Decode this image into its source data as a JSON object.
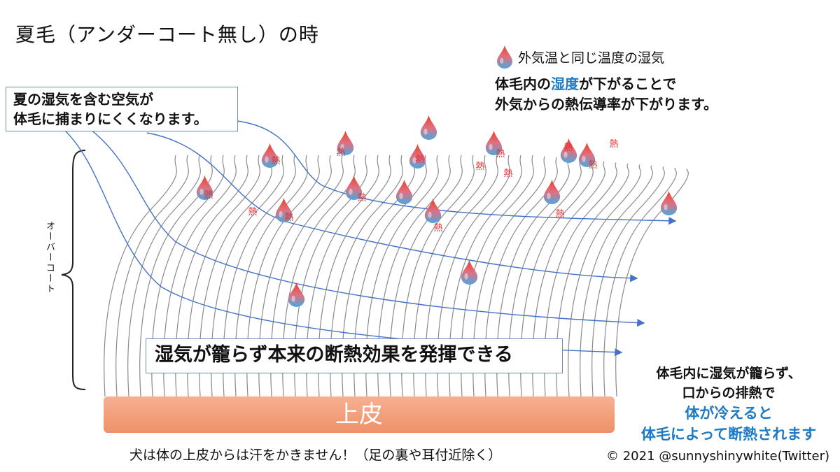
{
  "title": "夏毛（アンダーコート無し）の時",
  "legend": {
    "icon": "water-drop-icon",
    "label": "外気温と同じ温度の湿気"
  },
  "note_right": {
    "line1_pre": "体毛内の",
    "line1_highlight": "湿度",
    "line1_post": "が下がることで",
    "line2": "外気からの熱伝導率が下がります。"
  },
  "note_left": {
    "line1": "夏の湿気を含む空気が",
    "line2": "体毛に捕まりにくくなります。"
  },
  "overcoat_label": "オーバーコート",
  "center_label": "湿気が籠らず本来の断熱効果を発揮できる",
  "skin_label": "上皮",
  "bottom_note": "犬は体の上皮からは汗をかきません！（足の裏や耳付近除く）",
  "bottom_right": {
    "line1": "体毛内に湿気が籠らず、",
    "line2": "口からの排熱で",
    "line3": "体が冷えると",
    "line4": "体毛によって断熱されます"
  },
  "heat_char": "熱",
  "credit": "© 2021 @sunnyshinywhite(Twitter)",
  "colors": {
    "highlight": "#1f7ac2",
    "arrow": "#4472c4",
    "heat": "#e23030",
    "skin": "#f2a07c",
    "hair": "#8a8a8a"
  }
}
